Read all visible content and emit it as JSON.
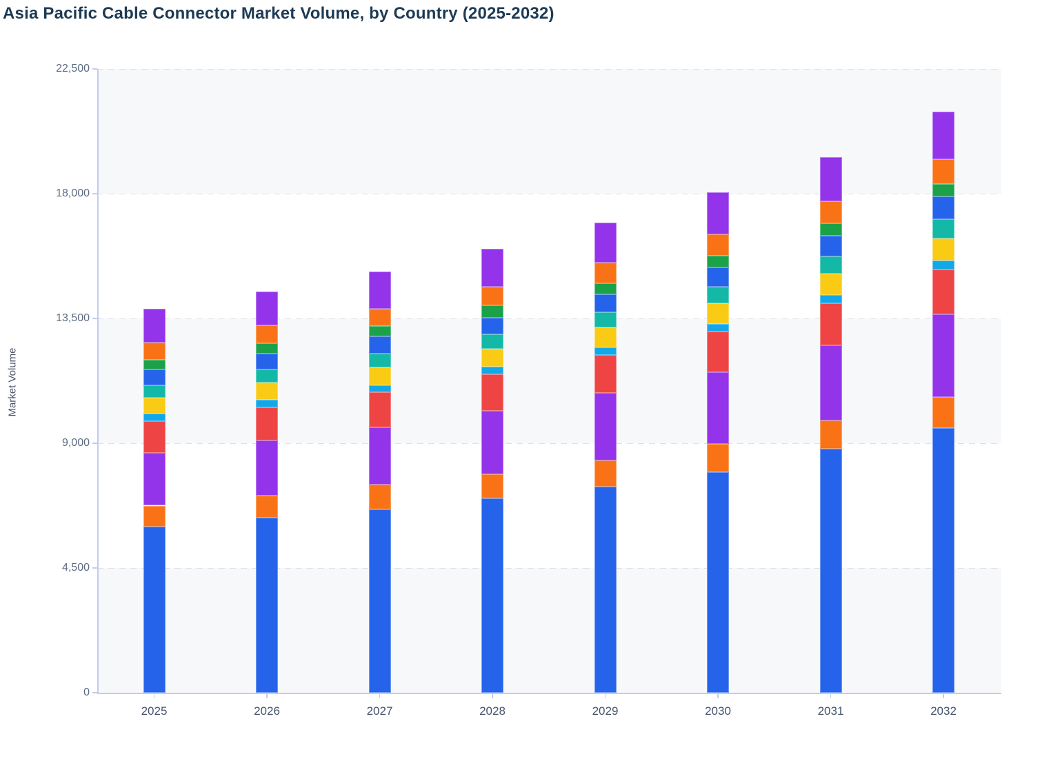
{
  "chart_data": {
    "type": "bar",
    "stacked": true,
    "title": "Asia Pacific Cable Connector Market Volume, by Country (2025-2032)",
    "ylabel": "Market Volume",
    "xlabel": "",
    "categories": [
      "2025",
      "2026",
      "2027",
      "2028",
      "2029",
      "2030",
      "2031",
      "2032"
    ],
    "ylim": [
      0,
      22500
    ],
    "y_ticks": [
      {
        "value": 0,
        "label": "0"
      },
      {
        "value": 4500,
        "label": "4,500"
      },
      {
        "value": 9000,
        "label": "9,000"
      },
      {
        "value": 13500,
        "label": "13,500"
      },
      {
        "value": 18000,
        "label": "18,000"
      },
      {
        "value": 22500,
        "label": "22,500"
      }
    ],
    "grid": "horizontal-dashed",
    "legend": "none",
    "plot_band_colors": [
      "#f7f8fa",
      "#ffffff"
    ],
    "gridline_color": "#dde1e8",
    "axis_color": "#c5cbed",
    "series": [
      {
        "name": "segment-1-blue",
        "color": "#2563eb",
        "values": [
          6000,
          6320,
          6620,
          7000,
          7430,
          7950,
          8790,
          9550
        ]
      },
      {
        "name": "segment-2-orange",
        "color": "#f97316",
        "values": [
          750,
          780,
          890,
          880,
          940,
          1020,
          1040,
          1110
        ]
      },
      {
        "name": "segment-3-purple",
        "color": "#9333ea",
        "values": [
          1900,
          1990,
          2070,
          2290,
          2440,
          2600,
          2690,
          2980
        ]
      },
      {
        "name": "segment-4-red",
        "color": "#ef4444",
        "values": [
          1140,
          1210,
          1270,
          1320,
          1370,
          1450,
          1520,
          1620
        ]
      },
      {
        "name": "segment-5-sky",
        "color": "#12a7e8",
        "values": [
          270,
          270,
          250,
          260,
          270,
          290,
          300,
          320
        ]
      },
      {
        "name": "segment-6-yellow",
        "color": "#f9cb14",
        "values": [
          580,
          620,
          640,
          660,
          730,
          730,
          770,
          810
        ]
      },
      {
        "name": "segment-7-teal",
        "color": "#14b8a6",
        "values": [
          460,
          460,
          500,
          510,
          540,
          600,
          620,
          680
        ]
      },
      {
        "name": "segment-8-blue",
        "color": "#2563eb",
        "values": [
          550,
          580,
          610,
          600,
          640,
          690,
          760,
          830
        ]
      },
      {
        "name": "segment-9-green",
        "color": "#1ba249",
        "values": [
          350,
          370,
          370,
          440,
          420,
          430,
          440,
          460
        ]
      },
      {
        "name": "segment-10-orange",
        "color": "#f97316",
        "values": [
          620,
          640,
          640,
          680,
          730,
          770,
          800,
          880
        ]
      },
      {
        "name": "segment-11-purple",
        "color": "#9333ea",
        "values": [
          1230,
          1240,
          1340,
          1370,
          1450,
          1520,
          1600,
          1720
        ]
      }
    ],
    "totals": [
      13850,
      14470,
      15200,
      16010,
      16960,
      18050,
      19330,
      20960
    ]
  }
}
